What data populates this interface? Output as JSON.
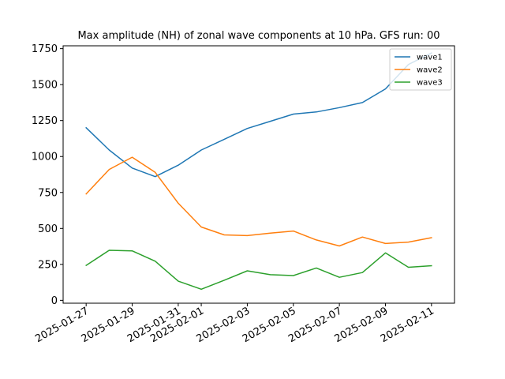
{
  "chart_data": {
    "type": "line",
    "title": "Max amplitude (NH) of zonal wave components at 10 hPa. GFS run: 00",
    "xlabel": "",
    "ylabel": "",
    "x": [
      "2025-01-27",
      "2025-01-28",
      "2025-01-29",
      "2025-01-30",
      "2025-01-31",
      "2025-02-01",
      "2025-02-02",
      "2025-02-03",
      "2025-02-04",
      "2025-02-05",
      "2025-02-06",
      "2025-02-07",
      "2025-02-08",
      "2025-02-09",
      "2025-02-10",
      "2025-02-11"
    ],
    "xticks": [
      "2025-01-27",
      "2025-01-29",
      "2025-01-31",
      "2025-02-01",
      "2025-02-03",
      "2025-02-05",
      "2025-02-07",
      "2025-02-09",
      "2025-02-11"
    ],
    "xlim": [
      "2025-01-26",
      "2025-02-12"
    ],
    "yticks": [
      0,
      250,
      500,
      750,
      1000,
      1250,
      1500,
      1750
    ],
    "ylim": [
      -20,
      1770
    ],
    "grid": false,
    "legend": "top-right",
    "series": [
      {
        "name": "wave1",
        "color": "#1f77b4",
        "values": [
          1200,
          1045,
          920,
          860,
          940,
          1045,
          1120,
          1195,
          1245,
          1295,
          1310,
          1340,
          1375,
          1470,
          1640,
          1720
        ]
      },
      {
        "name": "wave2",
        "color": "#ff7f0e",
        "values": [
          740,
          910,
          995,
          890,
          675,
          510,
          455,
          450,
          467,
          482,
          420,
          378,
          440,
          395,
          405,
          436
        ]
      },
      {
        "name": "wave3",
        "color": "#2ca02c",
        "values": [
          243,
          348,
          344,
          272,
          133,
          77,
          140,
          205,
          178,
          172,
          225,
          160,
          193,
          330,
          230,
          240
        ]
      }
    ]
  }
}
